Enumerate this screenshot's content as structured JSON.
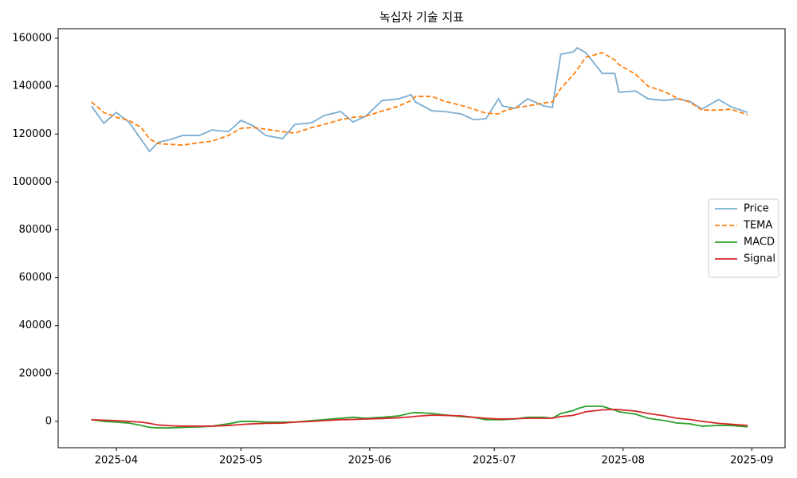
{
  "chart_data": {
    "type": "line",
    "title": "녹십자 기술 지표",
    "x": [
      -6,
      -3,
      0,
      3,
      6,
      8,
      10,
      13,
      16,
      20,
      23,
      27,
      30,
      33,
      36,
      40,
      43,
      47,
      50,
      54,
      57,
      60,
      64,
      68,
      71,
      72,
      76,
      79,
      83,
      86,
      89,
      92,
      93,
      96,
      99,
      103,
      105,
      107,
      110,
      111,
      113,
      117,
      120,
      121,
      125,
      128,
      132,
      135,
      138,
      141,
      145,
      148,
      152
    ],
    "xlim": [
      -14,
      161
    ],
    "xticks": [
      {
        "value": 0,
        "label": "2025-04"
      },
      {
        "value": 30,
        "label": "2025-05"
      },
      {
        "value": 61,
        "label": "2025-06"
      },
      {
        "value": 91,
        "label": "2025-07"
      },
      {
        "value": 122,
        "label": "2025-08"
      },
      {
        "value": 153,
        "label": "2025-09"
      }
    ],
    "ylim": [
      -11000,
      164000
    ],
    "yticks": [
      0,
      20000,
      40000,
      60000,
      80000,
      100000,
      120000,
      140000,
      160000
    ],
    "legend": "right",
    "series": [
      {
        "name": "Price",
        "color": "#1f77b4",
        "opacity": 0.6,
        "linestyle": "solid",
        "values": [
          131700,
          124500,
          129000,
          125000,
          117700,
          112700,
          116500,
          117700,
          119400,
          119400,
          121700,
          121000,
          125700,
          123400,
          119400,
          118100,
          124000,
          124700,
          127700,
          129400,
          125000,
          127400,
          134000,
          134700,
          136400,
          133400,
          129700,
          129400,
          128400,
          126000,
          126400,
          134700,
          131700,
          130700,
          134700,
          131700,
          131100,
          153300,
          154300,
          156000,
          154000,
          145300,
          145300,
          137400,
          138000,
          134700,
          134000,
          134700,
          133700,
          130400,
          134400,
          131400,
          129000
        ]
      },
      {
        "name": "TEMA",
        "color": "#ff7f0e",
        "opacity": 1,
        "linestyle": "dashed",
        "values": [
          133400,
          129000,
          127000,
          125700,
          122700,
          118000,
          116000,
          115700,
          115400,
          116400,
          117000,
          119400,
          122400,
          122700,
          122000,
          121000,
          120400,
          122700,
          124000,
          126000,
          127000,
          127400,
          129600,
          131700,
          134000,
          135700,
          135700,
          133700,
          132000,
          130400,
          128700,
          128400,
          129400,
          131000,
          131700,
          133000,
          133400,
          139000,
          144700,
          147000,
          152000,
          154000,
          151000,
          149000,
          145000,
          140000,
          137700,
          135000,
          133400,
          130000,
          130000,
          130400,
          128000
        ]
      },
      {
        "name": "MACD",
        "color": "#2ca02c",
        "opacity": 1,
        "linestyle": "solid",
        "values": [
          700,
          0,
          -300,
          -700,
          -1700,
          -2500,
          -2700,
          -2700,
          -2500,
          -2300,
          -2000,
          -1000,
          0,
          0,
          -300,
          -300,
          -300,
          300,
          700,
          1300,
          1700,
          1300,
          1700,
          2300,
          3500,
          3700,
          3300,
          2700,
          2000,
          1700,
          700,
          700,
          700,
          1000,
          1700,
          1700,
          1300,
          3300,
          4500,
          5300,
          6300,
          6300,
          4700,
          4000,
          3000,
          1300,
          300,
          -700,
          -1000,
          -2000,
          -1700,
          -1700,
          -2300
        ]
      },
      {
        "name": "Signal",
        "color": "#d62728",
        "opacity": 1,
        "linestyle": "solid",
        "values": [
          700,
          500,
          300,
          0,
          -300,
          -800,
          -1500,
          -1800,
          -2000,
          -2000,
          -2000,
          -1700,
          -1300,
          -1000,
          -800,
          -700,
          -300,
          0,
          300,
          700,
          800,
          1000,
          1200,
          1500,
          1900,
          2100,
          2600,
          2500,
          2300,
          1700,
          1300,
          1000,
          1000,
          1100,
          1300,
          1300,
          1300,
          2000,
          2500,
          3000,
          4000,
          4800,
          5000,
          4900,
          4300,
          3300,
          2300,
          1300,
          800,
          0,
          -800,
          -1200,
          -1700
        ]
      }
    ]
  }
}
